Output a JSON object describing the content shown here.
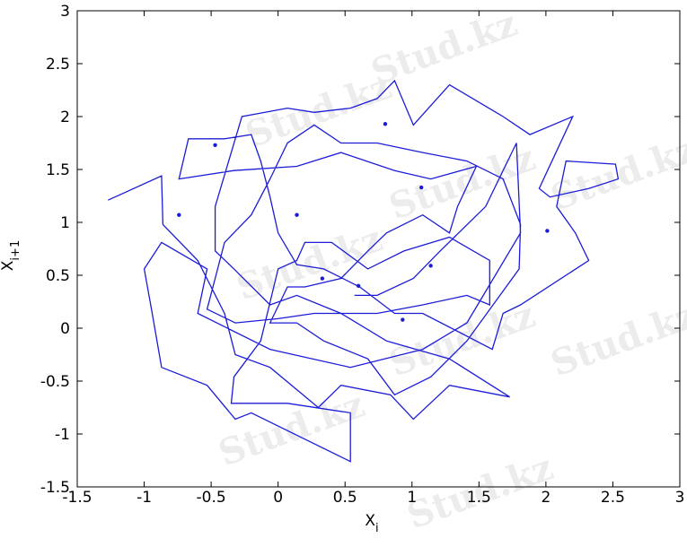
{
  "chart_data": {
    "type": "line",
    "watermark": "Stud.kz",
    "xlabel": "X",
    "xlabel_sub": "i",
    "ylabel": "X",
    "ylabel_sub": "i+1",
    "xlim": [
      -1.5,
      3
    ],
    "ylim": [
      -1.5,
      3
    ],
    "xticks": [
      -1.5,
      -1,
      -0.5,
      0,
      0.5,
      1,
      1.5,
      2,
      2.5,
      3
    ],
    "yticks": [
      -1.5,
      -1,
      -0.5,
      0,
      0.5,
      1,
      1.5,
      2,
      2.5,
      3
    ],
    "series": [
      {
        "mode": "line",
        "color": "#1c1cd8",
        "x": [
          -1.27,
          -0.87,
          -0.86,
          -0.6,
          -0.4,
          -0.32,
          -0.06,
          0.3,
          0.47,
          0.84,
          1.01,
          1.28,
          1.73,
          1.28,
          0.81,
          0.47,
          0.14,
          -0.06,
          -0.33,
          -0.47,
          -0.47,
          -0.27,
          0.07,
          0.27,
          0.54,
          0.74,
          0.87,
          1.01,
          1.28,
          1.68,
          1.88,
          2.2,
          1.95,
          2.03,
          2.32,
          2.54,
          2.52,
          2.15,
          2.08,
          2.22,
          2.32,
          1.81,
          1.68,
          1.6,
          1.34,
          1.08,
          0.87,
          0.61,
          0.34,
          0.14,
          0,
          -0.06,
          -0.13,
          -0.2,
          -0.4,
          -0.67,
          -0.74,
          -0.33,
          0.14,
          0.47,
          0.87,
          1.14,
          1.48,
          1.34,
          1.28,
          1.08,
          0.81,
          0.67,
          0.47,
          0.2,
          0.07,
          -0.06,
          0.14,
          0.34,
          0.67,
          0.87,
          1.14,
          1.41,
          1.8,
          1.81,
          1.68,
          1.41,
          1.08,
          0.74,
          0.47,
          0.27,
          0.07,
          -0.06,
          -0.2,
          -0.4,
          -0.47,
          -0.53,
          -0.32,
          0,
          0.27,
          0.74,
          1.08,
          1.41,
          1.58,
          1.58,
          1.28,
          0.94,
          0.67,
          0.4,
          0.2,
          0.14,
          0,
          -0.13,
          -0.33,
          -0.35,
          0.07,
          0.54,
          0.54,
          -0.2,
          -0.32,
          -0.53,
          -0.87,
          -0.94,
          -1,
          -0.87,
          -0.53,
          -0.6,
          -0.06,
          0.54,
          1.08,
          1.41,
          1.81,
          1.78,
          1.55,
          1.21,
          1.01,
          0.74,
          0.57
        ],
        "values": [
          1.21,
          1.44,
          0.98,
          0.64,
          0.14,
          -0.25,
          -0.37,
          -0.75,
          -0.54,
          -0.63,
          -0.86,
          -0.54,
          -0.65,
          -0.29,
          -0.12,
          0.14,
          0.31,
          0.22,
          0.56,
          0.73,
          1.15,
          2,
          2.08,
          2.04,
          2.08,
          2.17,
          2.34,
          1.92,
          2.3,
          2,
          1.83,
          2,
          1.32,
          1.24,
          1.32,
          1.41,
          1.55,
          1.58,
          1.15,
          0.9,
          0.64,
          0.22,
          0.14,
          -0.2,
          -0.03,
          0.14,
          0.14,
          0.39,
          0.56,
          0.6,
          0.9,
          1.24,
          1.58,
          1.83,
          1.79,
          1.79,
          1.41,
          1.49,
          1.53,
          1.66,
          1.49,
          1.41,
          1.53,
          1.15,
          0.9,
          1.07,
          0.9,
          0.73,
          0.47,
          0.39,
          0.39,
          0.05,
          0.05,
          -0.12,
          -0.29,
          -0.63,
          -0.46,
          -0.12,
          0.56,
          0.98,
          1.41,
          1.58,
          1.66,
          1.75,
          1.75,
          1.92,
          1.75,
          1.41,
          1.07,
          0.81,
          0.47,
          0.18,
          0.05,
          0.09,
          0.14,
          0.14,
          0.22,
          0.31,
          0.22,
          0.64,
          0.86,
          0.73,
          0.56,
          0.81,
          0.81,
          0.64,
          0.56,
          -0.12,
          -0.46,
          -0.71,
          -0.71,
          -0.8,
          -1.26,
          -0.8,
          -0.86,
          -0.54,
          -0.37,
          0.14,
          0.56,
          0.81,
          0.56,
          0.14,
          -0.2,
          -0.37,
          -0.2,
          0.05,
          0.9,
          1.75,
          1.15,
          0.73,
          0.47,
          0.31,
          0.31
        ]
      },
      {
        "mode": "markers",
        "color": "#1c1cd8",
        "x": [
          -0.47,
          -0.74,
          0.8,
          1.07,
          0.14,
          2.01,
          1.14,
          0.33,
          0.6,
          0.93
        ],
        "values": [
          1.73,
          1.07,
          1.93,
          1.33,
          1.07,
          0.92,
          0.59,
          0.47,
          0.4,
          0.08
        ]
      }
    ]
  }
}
